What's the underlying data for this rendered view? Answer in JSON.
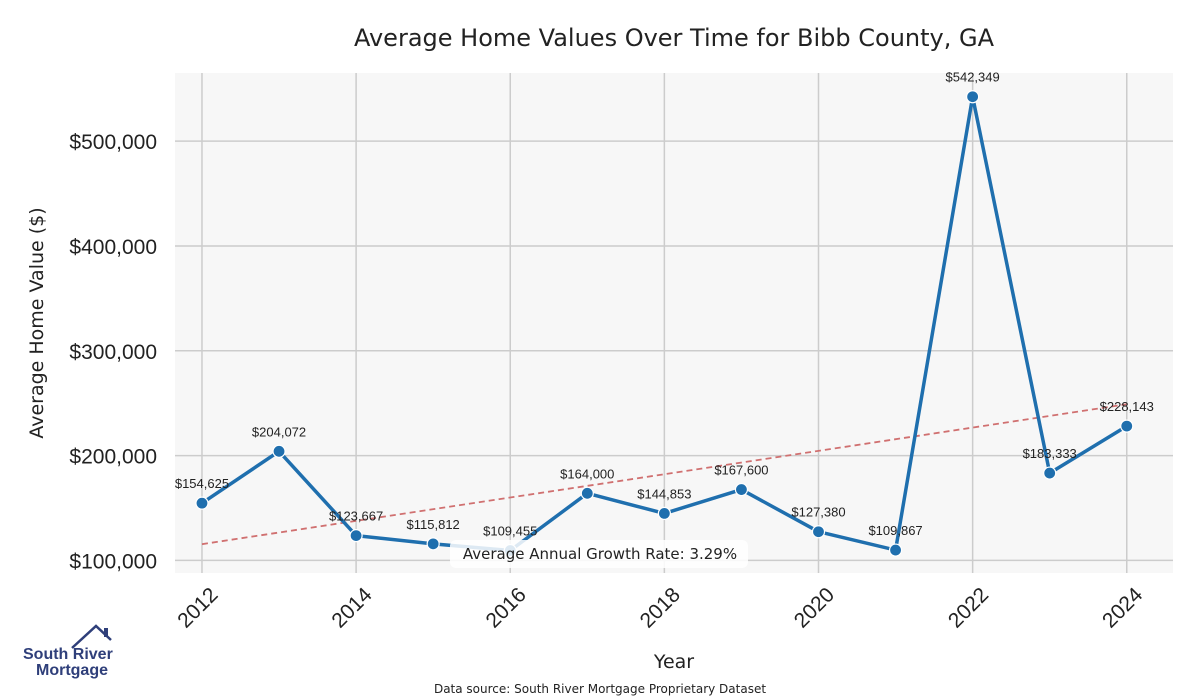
{
  "chart_data": {
    "type": "line",
    "title": "Average Home Values Over Time for Bibb County, GA",
    "xlabel": "Year",
    "ylabel": "Average Home Value ($)",
    "x": [
      2012,
      2013,
      2014,
      2015,
      2016,
      2017,
      2018,
      2019,
      2020,
      2021,
      2022,
      2023,
      2024
    ],
    "values": [
      154625,
      204072,
      123667,
      115812,
      109455,
      164000,
      144853,
      167600,
      127380,
      109867,
      542349,
      183333,
      228143
    ],
    "data_labels": [
      "$154,625",
      "$204,072",
      "$123,667",
      "$115,812",
      "$109,455",
      "$164,000",
      "$144,853",
      "$167,600",
      "$127,380",
      "$109,867",
      "$542,349",
      "$183,333",
      "$228,143"
    ],
    "x_ticks": [
      2012,
      2014,
      2016,
      2018,
      2020,
      2022,
      2024
    ],
    "x_tick_labels": [
      "2012",
      "2014",
      "2016",
      "2018",
      "2020",
      "2022",
      "2024"
    ],
    "y_ticks": [
      100000,
      200000,
      300000,
      400000,
      500000
    ],
    "y_tick_labels": [
      "$100,000",
      "$200,000",
      "$300,000",
      "$400,000",
      "$500,000"
    ],
    "xlim": [
      2011.65,
      2024.6
    ],
    "ylim": [
      88000,
      565000
    ],
    "trend": {
      "x": [
        2012,
        2024
      ],
      "y": [
        115500,
        249000
      ],
      "color": "#d07070"
    },
    "growth_text": "Average Annual Growth Rate: 3.29%",
    "line_color": "#1f6fae",
    "grid": true
  },
  "footer": {
    "source": "Data source: South River Mortgage Proprietary Dataset"
  },
  "logo": {
    "line1": "South River",
    "line2": "Mortgage",
    "color": "#2f3f7a"
  }
}
